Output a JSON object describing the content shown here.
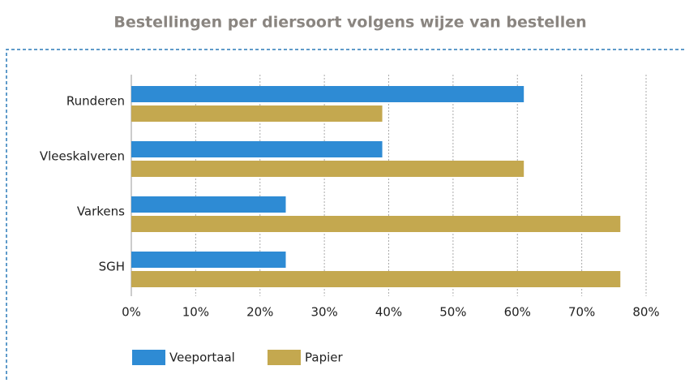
{
  "chart_data": {
    "type": "bar",
    "orientation": "horizontal",
    "title": "Bestellingen per diersoort volgens wijze van bestellen",
    "categories": [
      "Runderen",
      "Vleeskalveren",
      "Varkens",
      "SGH"
    ],
    "series": [
      {
        "name": "Veeportaal",
        "color": "#2e8bd4",
        "values": [
          61,
          39,
          24,
          24
        ]
      },
      {
        "name": "Papier",
        "color": "#c4a84f",
        "values": [
          39,
          61,
          76,
          76
        ]
      }
    ],
    "xlim": [
      0,
      80
    ],
    "xticks": [
      {
        "value": 0,
        "label": "0%"
      },
      {
        "value": 10,
        "label": "10%"
      },
      {
        "value": 20,
        "label": "20%"
      },
      {
        "value": 30,
        "label": "30%"
      },
      {
        "value": 40,
        "label": "40%"
      },
      {
        "value": 50,
        "label": "50%"
      },
      {
        "value": 60,
        "label": "60%"
      },
      {
        "value": 70,
        "label": "70%"
      },
      {
        "value": 80,
        "label": "80%"
      }
    ],
    "grid": true,
    "legend": "bottom"
  }
}
